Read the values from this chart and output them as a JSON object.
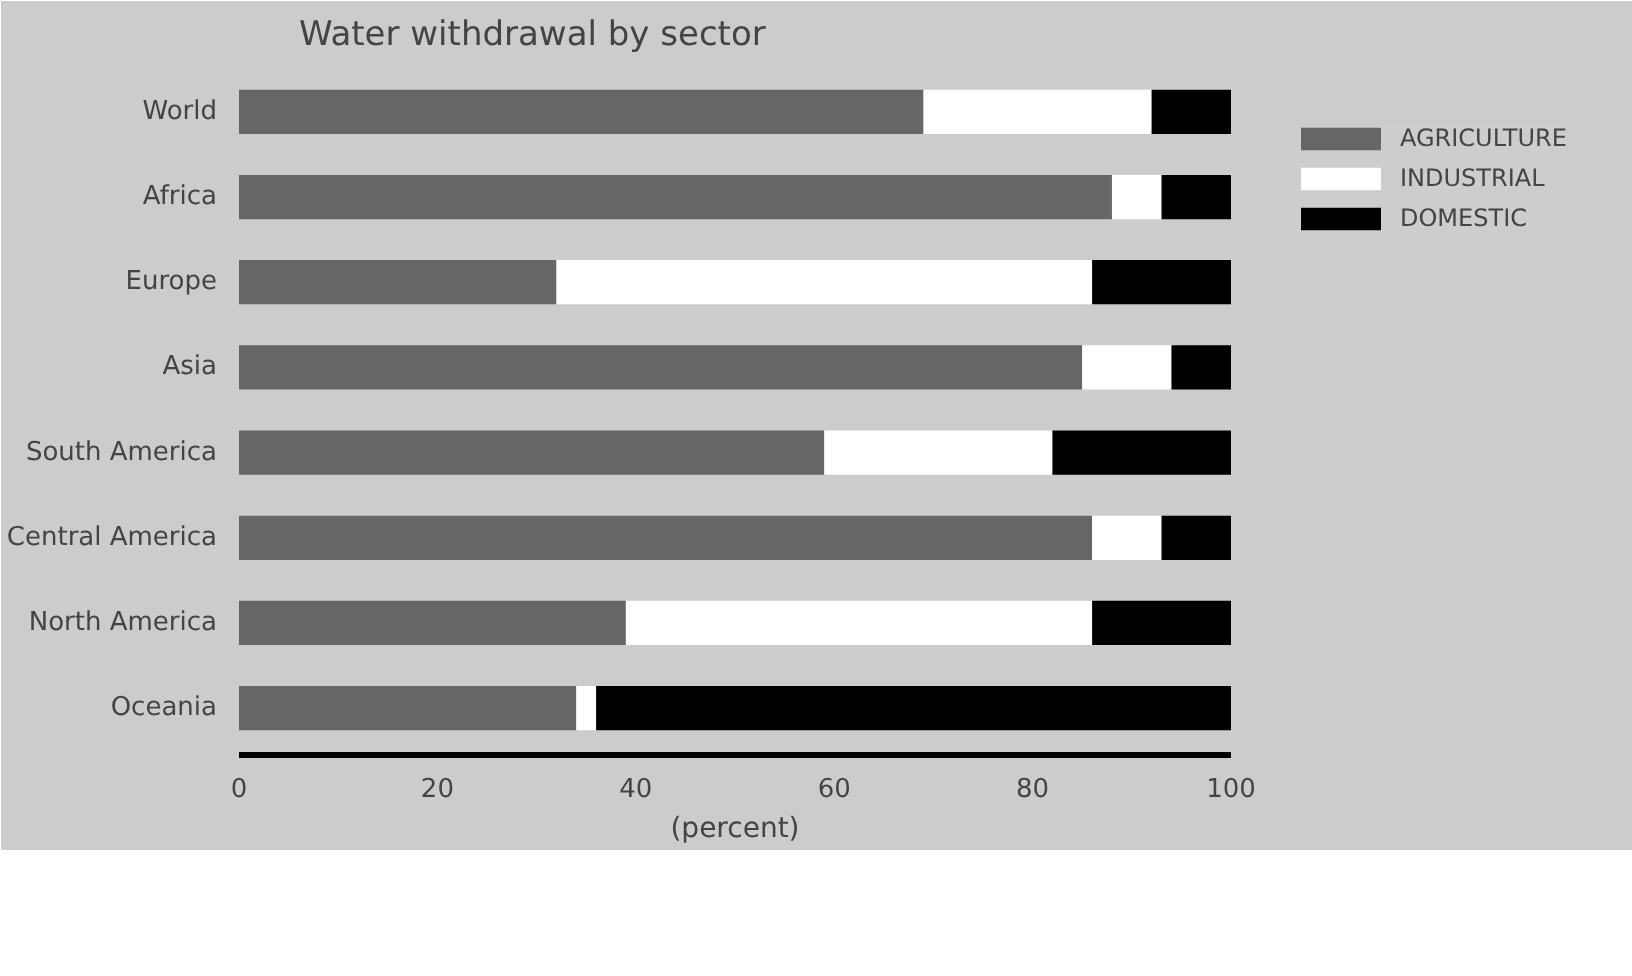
{
  "chart_data": {
    "type": "bar",
    "title": "Water withdrawal by sector",
    "xlabel": "(percent)",
    "orientation": "horizontal",
    "stacked": true,
    "categories": [
      "World",
      "Africa",
      "Europe",
      "Asia",
      "South America",
      "Central America",
      "North America",
      "Oceania"
    ],
    "series": [
      {
        "name": "AGRICULTURE",
        "color": "#666666",
        "values": [
          69,
          88,
          32,
          85,
          59,
          86,
          39,
          34
        ]
      },
      {
        "name": "INDUSTRIAL",
        "color": "#ffffff",
        "values": [
          23,
          5,
          54,
          9,
          23,
          7,
          47,
          2
        ]
      },
      {
        "name": "DOMESTIC",
        "color": "#000000",
        "values": [
          8,
          7,
          14,
          6,
          18,
          7,
          14,
          64
        ]
      }
    ],
    "xlim": [
      0,
      100
    ],
    "xticks": [
      0,
      20,
      40,
      60,
      80,
      100
    ],
    "grid": false,
    "legend": "top right"
  }
}
